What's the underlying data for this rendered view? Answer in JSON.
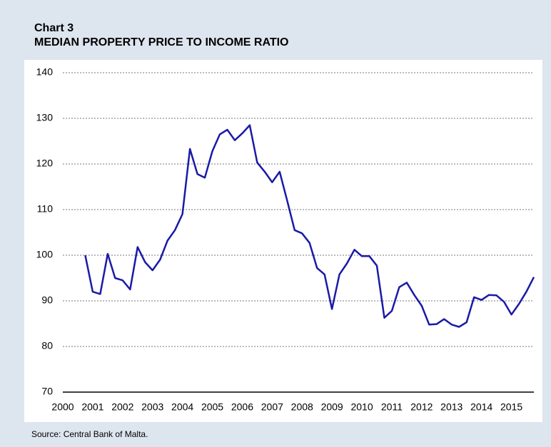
{
  "chart_data": {
    "type": "line",
    "title": "Chart 3",
    "subtitle": "MEDIAN PROPERTY PRICE TO INCOME RATIO",
    "source": "Source: Central Bank of Malta.",
    "x": [
      2000.75,
      2001,
      2001.25,
      2001.5,
      2001.75,
      2002,
      2002.25,
      2002.5,
      2002.75,
      2003,
      2003.25,
      2003.5,
      2003.75,
      2004,
      2004.25,
      2004.5,
      2004.75,
      2005,
      2005.25,
      2005.5,
      2005.75,
      2006,
      2006.25,
      2006.5,
      2006.75,
      2007,
      2007.25,
      2007.5,
      2007.75,
      2008,
      2008.25,
      2008.5,
      2008.75,
      2009,
      2009.25,
      2009.5,
      2009.75,
      2010,
      2010.25,
      2010.5,
      2010.75,
      2011,
      2011.25,
      2011.5,
      2011.75,
      2012,
      2012.25,
      2012.5,
      2012.75,
      2013,
      2013.25,
      2013.5,
      2013.75,
      2014,
      2014.25,
      2014.5,
      2014.75,
      2015,
      2015.25,
      2015.5,
      2015.75
    ],
    "series": [
      {
        "name": "Median property price to income ratio",
        "color": "#1a1aa8",
        "values": [
          100,
          92,
          91.5,
          100.3,
          95,
          94.5,
          92.5,
          101.8,
          98.5,
          96.7,
          99,
          103.2,
          105.5,
          109,
          123.3,
          117.8,
          117,
          122.8,
          126.5,
          127.5,
          125.2,
          126.7,
          128.5,
          120.3,
          118.3,
          116,
          118.3,
          112,
          105.5,
          104.8,
          102.7,
          97.2,
          95.8,
          88.2,
          95.8,
          98.2,
          101.2,
          99.8,
          99.8,
          97.7,
          86.3,
          87.8,
          93,
          94,
          91.3,
          88.9,
          84.8,
          84.9,
          86,
          84.8,
          84.3,
          85.3,
          90.8,
          90.2,
          91.3,
          91.2,
          89.8,
          87,
          89.3,
          92,
          95.2
        ]
      }
    ],
    "xlim": [
      2000,
      2015.75
    ],
    "xticks": [
      2000,
      2001,
      2002,
      2003,
      2004,
      2005,
      2006,
      2007,
      2008,
      2009,
      2010,
      2011,
      2012,
      2013,
      2014,
      2015
    ],
    "ylim": [
      70,
      140
    ],
    "yticks": [
      70,
      80,
      90,
      100,
      110,
      120,
      130,
      140
    ],
    "grid": true
  }
}
